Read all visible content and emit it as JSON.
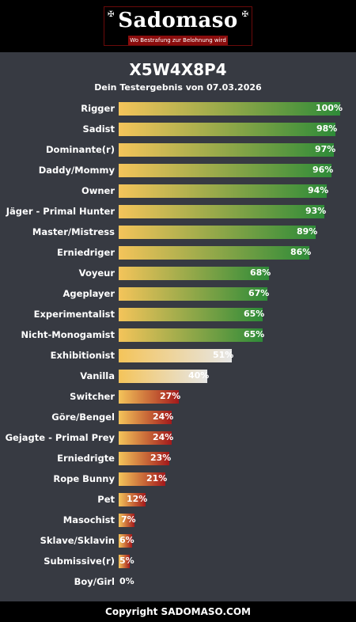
{
  "header": {
    "logo_text": "Sadomaso",
    "logo_tagline": "Wo Bestrafung zur Belohnung wird"
  },
  "result": {
    "title": "X5W4X8P4",
    "subtitle": "Dein Testergebnis von 07.03.2026"
  },
  "colors": {
    "background": "#373a42",
    "bar_start": "#f4c45a",
    "high": "#2e8b38",
    "mid": "#e6e6e6",
    "low": "#a3191b"
  },
  "chart_data": {
    "type": "bar",
    "orientation": "horizontal",
    "xlim": [
      0,
      100
    ],
    "categories": [
      "Rigger",
      "Sadist",
      "Dominante(r)",
      "Daddy/Mommy",
      "Owner",
      "Jäger - Primal Hunter",
      "Master/Mistress",
      "Erniedriger",
      "Voyeur",
      "Ageplayer",
      "Experimentalist",
      "Nicht-Monogamist",
      "Exhibitionist",
      "Vanilla",
      "Switcher",
      "Göre/Bengel",
      "Gejagte - Primal Prey",
      "Erniedrigte",
      "Rope Bunny",
      "Pet",
      "Masochist",
      "Sklave/Sklavin",
      "Submissive(r)",
      "Boy/Girl"
    ],
    "values": [
      100,
      98,
      97,
      96,
      94,
      93,
      89,
      86,
      68,
      67,
      65,
      65,
      51,
      40,
      27,
      24,
      24,
      23,
      21,
      12,
      7,
      6,
      5,
      0
    ],
    "value_labels": [
      "100%",
      "98%",
      "97%",
      "96%",
      "94%",
      "93%",
      "89%",
      "86%",
      "68%",
      "67%",
      "65%",
      "65%",
      "51%",
      "40%",
      "27%",
      "24%",
      "24%",
      "23%",
      "21%",
      "12%",
      "7%",
      "6%",
      "5%",
      "0%"
    ]
  },
  "footer": {
    "copyright": "Copyright SADOMASO.COM"
  }
}
